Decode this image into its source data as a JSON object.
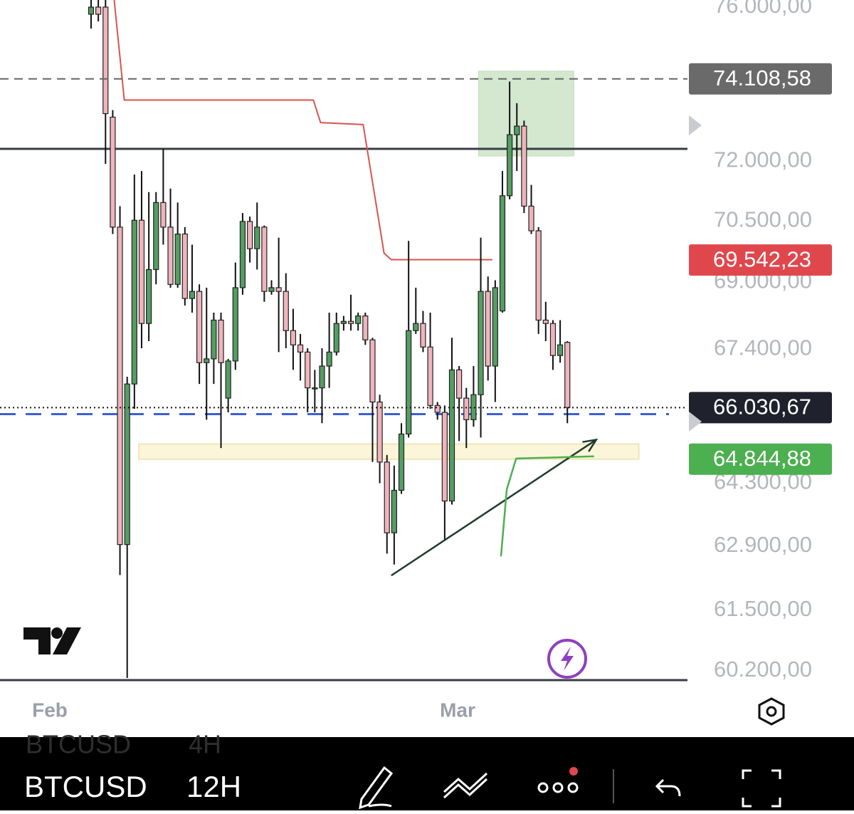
{
  "chart_data": {
    "type": "candlestick",
    "symbol": "BTCUSD",
    "interval": "12H",
    "prev_symbol": "BTCUSD",
    "prev_interval": "4H",
    "x_labels": [
      "Feb",
      "Mar"
    ],
    "log_scale": true,
    "ylim": [
      60005,
      76190
    ],
    "yticks": [
      {
        "value": 76000,
        "label": "76.000,00"
      },
      {
        "value": 72000,
        "label": "72.000,00"
      },
      {
        "value": 70500,
        "label": "70.500,00"
      },
      {
        "value": 69000,
        "label": "69.000,00"
      },
      {
        "value": 67400,
        "label": "67.400,00"
      },
      {
        "value": 64300,
        "label": "64.300,00"
      },
      {
        "value": 62900,
        "label": "62.900,00"
      },
      {
        "value": 61500,
        "label": "61.500,00"
      },
      {
        "value": 60200,
        "label": "60.200,00"
      }
    ],
    "price_tags": [
      {
        "value": 74108.58,
        "label": "74.108,58",
        "color": "#6a6a6a"
      },
      {
        "value": 69542.23,
        "label": "69.542,23",
        "color": "#e0474c"
      },
      {
        "value": 66030.67,
        "label": "66.030,67",
        "color": "#1f222c"
      },
      {
        "value": 64844.88,
        "label": "64.844,88",
        "color": "#4caf50"
      }
    ],
    "up_color": "#559d63",
    "down_color": "#efb4bd",
    "open": [
      75810,
      76000,
      76000,
      73120,
      70350,
      62930,
      66580,
      70520,
      68010,
      69310,
      70960,
      70350,
      68950,
      70180,
      68610,
      68780,
      67080,
      67170,
      68090,
      66250,
      67120,
      68870,
      70490,
      69820,
      70350,
      68780,
      68870,
      68780,
      67840,
      67500,
      67330,
      66490,
      66490,
      67000,
      67330,
      68010,
      68060,
      68010,
      68190,
      67620,
      66160,
      64780,
      63190,
      64140,
      65420,
      67840,
      68010,
      67450,
      66080,
      65920,
      63900,
      66910,
      66250,
      65750,
      66330,
      68780,
      67000,
      68310,
      71130,
      72670,
      72890,
      70870,
      70260,
      68090,
      68010,
      67250,
      67560
    ],
    "high": [
      76380,
      76380,
      76190,
      73300,
      70870,
      66750,
      71660,
      71750,
      71220,
      71220,
      72310,
      71310,
      70960,
      70350,
      69920,
      68950,
      68870,
      68270,
      68270,
      67170,
      69480,
      70700,
      70610,
      70960,
      70390,
      69050,
      70090,
      69220,
      68360,
      67760,
      67420,
      66910,
      67420,
      68270,
      68270,
      68190,
      68700,
      68270,
      68270,
      67670,
      66330,
      64940,
      64700,
      65670,
      70010,
      68870,
      68310,
      68270,
      66160,
      66080,
      67670,
      67000,
      66490,
      67000,
      70090,
      69140,
      69050,
      71750,
      74040,
      73480,
      73030,
      71400,
      70350,
      68530,
      68090,
      68090,
      67590
    ],
    "low": [
      75430,
      75620,
      71930,
      70180,
      62260,
      60050,
      66000,
      67420,
      67590,
      68950,
      69920,
      68870,
      68870,
      68440,
      68270,
      66580,
      65750,
      66580,
      65100,
      65920,
      66910,
      68700,
      69480,
      69310,
      68530,
      68700,
      67330,
      67420,
      66910,
      66660,
      65920,
      65920,
      65670,
      66490,
      67250,
      67840,
      67840,
      67840,
      67500,
      64780,
      64300,
      62730,
      62490,
      64060,
      65340,
      67760,
      67330,
      66000,
      65750,
      63040,
      63820,
      65260,
      65100,
      65590,
      65340,
      66660,
      66160,
      68270,
      71040,
      71750,
      70700,
      70180,
      67760,
      67590,
      66910,
      67080,
      65670
    ],
    "close": [
      76000,
      75810,
      73210,
      70350,
      62930,
      66580,
      70520,
      68010,
      69310,
      70960,
      70350,
      68950,
      70180,
      68610,
      68780,
      67080,
      67170,
      68090,
      67080,
      67120,
      68870,
      70490,
      69820,
      70350,
      68780,
      68870,
      68780,
      67840,
      67500,
      67330,
      66490,
      66490,
      67000,
      67330,
      68010,
      68060,
      68010,
      68190,
      67620,
      66160,
      64780,
      63190,
      64140,
      65420,
      67840,
      68010,
      67450,
      66080,
      65920,
      63900,
      66910,
      66250,
      65750,
      66330,
      68780,
      67000,
      68870,
      71130,
      72670,
      72890,
      70870,
      70260,
      68090,
      68010,
      67250,
      67500,
      66030.67
    ],
    "indicator": {
      "color": "#d9534f",
      "x": [
        3.2,
        4.6,
        30.8,
        31.8,
        37.7,
        40.6,
        41.6,
        55.6
      ],
      "values": [
        76190,
        73560,
        73560,
        72980,
        72930,
        69710,
        69550,
        69550
      ]
    },
    "resistance": 72310,
    "support": 65880,
    "zone": {
      "x": [
        6.6,
        75.9
      ],
      "values": [
        64844.88,
        65190
      ]
    },
    "target_box": {
      "x": [
        53.7,
        66.9
      ],
      "values": [
        72130,
        74310
      ]
    },
    "trend_arrow": {
      "x": [
        41.6,
        70.0
      ],
      "values": [
        62250,
        65290
      ]
    },
    "path_sketch": {
      "x": [
        56.8,
        57.6,
        58.9,
        69.7
      ],
      "values": [
        62670,
        64160,
        64860,
        64910
      ]
    }
  }
}
